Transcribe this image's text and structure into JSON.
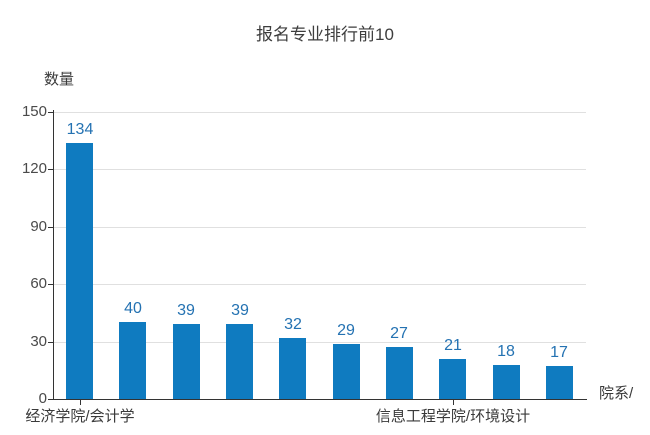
{
  "title": "报名专业排行前10",
  "chart_data": {
    "type": "bar",
    "title": "报名专业排行前10",
    "ylabel": "数量",
    "xlabel": "院系/",
    "categories": [
      "经济学院/会计学",
      "",
      "",
      "",
      "",
      "",
      "",
      "信息工程学院/环境设计",
      "",
      ""
    ],
    "values": [
      134,
      40,
      39,
      39,
      32,
      29,
      27,
      21,
      18,
      17
    ],
    "y_ticks": [
      0,
      30,
      60,
      90,
      120,
      150
    ],
    "ylim": [
      0,
      150
    ],
    "grid": true,
    "legend": "none",
    "bar_color": "#0f7bc0",
    "value_label_color": "#2472b2",
    "axis_color": "#333333",
    "gridline_color": "#e0e0e0"
  }
}
